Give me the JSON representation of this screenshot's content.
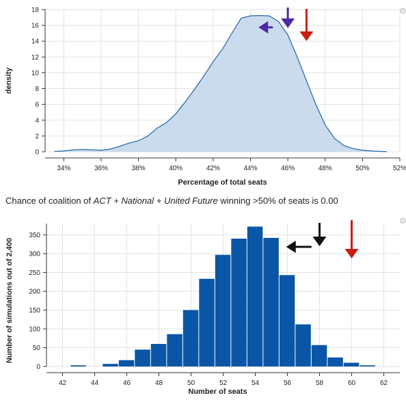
{
  "caption": {
    "prefix": "Chance of coalition of ",
    "party": "ACT + National + United Future",
    "suffix": " winning >50% of seats is 0.00"
  },
  "icons": {
    "settings_top": "gear-icon",
    "settings_bottom": "gear-icon"
  },
  "colors": {
    "density_fill": "#c9dbec",
    "density_stroke": "#2f6eae",
    "bar_fill": "#0a56a6",
    "arrow_red": "#c91d12",
    "arrow_purple": "#4c2aa6",
    "arrow_black": "#111111"
  },
  "chart_data": [
    {
      "type": "area",
      "xlabel": "Percentage of total seats",
      "ylabel": "density",
      "xlim": [
        0.33,
        0.52
      ],
      "ylim": [
        0,
        18
      ],
      "x_ticks": [
        "34%",
        "36%",
        "38%",
        "40%",
        "42%",
        "44%",
        "46%",
        "48%",
        "50%",
        "52%"
      ],
      "y_ticks": [
        "0",
        "2",
        "4",
        "6",
        "8",
        "10",
        "12",
        "14",
        "16",
        "18"
      ],
      "grid": true,
      "x": [
        0.335,
        0.34,
        0.345,
        0.35,
        0.355,
        0.36,
        0.365,
        0.37,
        0.375,
        0.38,
        0.385,
        0.39,
        0.395,
        0.4,
        0.405,
        0.41,
        0.415,
        0.42,
        0.425,
        0.43,
        0.435,
        0.44,
        0.445,
        0.45,
        0.455,
        0.46,
        0.465,
        0.47,
        0.475,
        0.48,
        0.485,
        0.49,
        0.495,
        0.5,
        0.505,
        0.51,
        0.513
      ],
      "y": [
        0.05,
        0.1,
        0.25,
        0.3,
        0.25,
        0.2,
        0.35,
        0.7,
        1.1,
        1.4,
        2.0,
        3.0,
        3.7,
        4.8,
        6.3,
        7.9,
        9.6,
        11.4,
        13.0,
        15.0,
        16.9,
        17.2,
        17.25,
        17.2,
        16.5,
        14.8,
        12.0,
        9.0,
        6.0,
        3.4,
        1.7,
        0.8,
        0.4,
        0.2,
        0.1,
        0.04,
        0.02
      ],
      "markers": [
        {
          "kind": "down-arrow",
          "color": "red",
          "x": 0.47
        },
        {
          "kind": "down-arrow",
          "color": "purple",
          "x": 0.46
        },
        {
          "kind": "left-arrow",
          "color": "purple",
          "x": 0.452
        }
      ]
    },
    {
      "type": "bar",
      "xlabel": "Number of seats",
      "ylabel": "Number of simulations out of 2,400",
      "xlim": [
        41,
        63
      ],
      "ylim": [
        0,
        380
      ],
      "x_ticks": [
        "42",
        "44",
        "46",
        "48",
        "50",
        "52",
        "54",
        "56",
        "58",
        "60",
        "62"
      ],
      "y_ticks": [
        "0",
        "50",
        "100",
        "150",
        "200",
        "250",
        "300",
        "350"
      ],
      "grid": true,
      "categories": [
        43,
        44,
        45,
        46,
        47,
        48,
        49,
        50,
        51,
        52,
        53,
        54,
        55,
        56,
        57,
        58,
        59,
        60,
        61
      ],
      "values": [
        3,
        0,
        7,
        17,
        45,
        60,
        86,
        150,
        233,
        297,
        340,
        372,
        342,
        243,
        112,
        57,
        24,
        10,
        3
      ],
      "markers": [
        {
          "kind": "down-arrow",
          "color": "red",
          "x": 60
        },
        {
          "kind": "down-arrow",
          "color": "black",
          "x": 58
        },
        {
          "kind": "left-arrow",
          "color": "black",
          "x": 57.5
        }
      ]
    }
  ]
}
